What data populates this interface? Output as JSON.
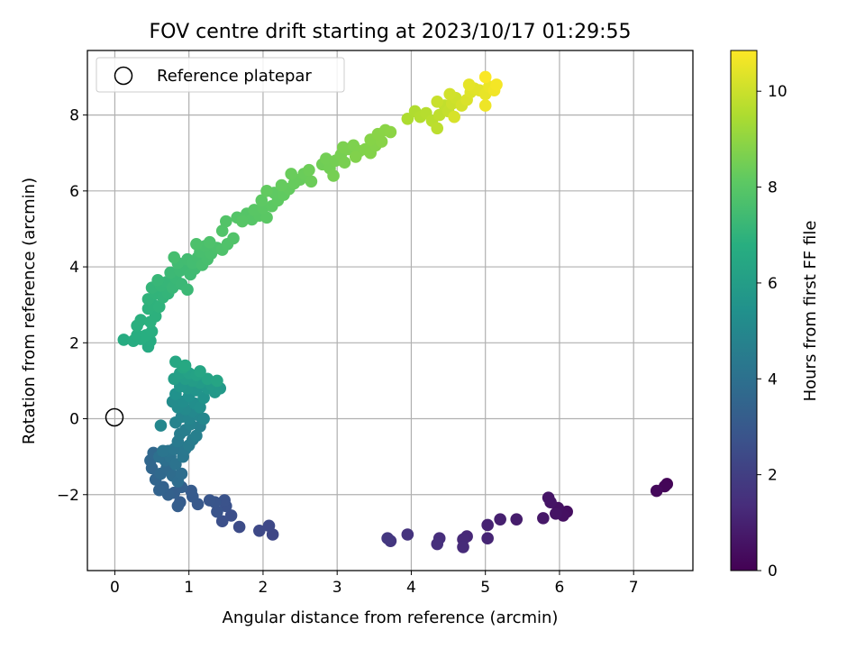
{
  "chart_data": {
    "type": "scatter",
    "title": "FOV centre drift starting at 2023/10/17 01:29:55",
    "xlabel": "Angular distance from reference (arcmin)",
    "ylabel": "Rotation from reference (arcmin)",
    "xlim": [
      -0.37,
      7.8
    ],
    "ylim": [
      -4.0,
      9.7
    ],
    "xticks": [
      "0",
      "1",
      "2",
      "3",
      "4",
      "5",
      "6",
      "7"
    ],
    "yticks": [
      "−2",
      "0",
      "2",
      "4",
      "6",
      "8"
    ],
    "grid": true,
    "legend": {
      "placement": "top-left",
      "label": "Reference platepar"
    },
    "reference_point": {
      "x": 0,
      "y": 0
    },
    "colorbar": {
      "label": "Hours from first FF file",
      "min": 0,
      "max": 10.85,
      "ticks": [
        "0",
        "2",
        "4",
        "6",
        "8",
        "10"
      ],
      "colormap": "viridis"
    },
    "points": [
      {
        "x": 7.45,
        "y": -1.72,
        "c": 0.1
      },
      {
        "x": 7.42,
        "y": -1.78,
        "c": 0.15
      },
      {
        "x": 7.31,
        "y": -1.9,
        "c": 0.25
      },
      {
        "x": 6.1,
        "y": -2.45,
        "c": 0.4
      },
      {
        "x": 6.05,
        "y": -2.55,
        "c": 0.45
      },
      {
        "x": 5.98,
        "y": -2.35,
        "c": 0.5
      },
      {
        "x": 5.95,
        "y": -2.5,
        "c": 0.55
      },
      {
        "x": 5.88,
        "y": -2.2,
        "c": 0.6
      },
      {
        "x": 5.85,
        "y": -2.08,
        "c": 0.62
      },
      {
        "x": 5.78,
        "y": -2.62,
        "c": 0.7
      },
      {
        "x": 5.42,
        "y": -2.65,
        "c": 0.85
      },
      {
        "x": 5.2,
        "y": -2.65,
        "c": 0.95
      },
      {
        "x": 5.03,
        "y": -2.8,
        "c": 1.05
      },
      {
        "x": 5.03,
        "y": -3.15,
        "c": 1.1
      },
      {
        "x": 4.75,
        "y": -3.1,
        "c": 1.2
      },
      {
        "x": 4.7,
        "y": -3.18,
        "c": 1.25
      },
      {
        "x": 4.7,
        "y": -3.38,
        "c": 1.3
      },
      {
        "x": 4.38,
        "y": -3.15,
        "c": 1.4
      },
      {
        "x": 4.35,
        "y": -3.3,
        "c": 1.45
      },
      {
        "x": 3.95,
        "y": -3.05,
        "c": 1.6
      },
      {
        "x": 3.72,
        "y": -3.22,
        "c": 1.7
      },
      {
        "x": 3.68,
        "y": -3.15,
        "c": 1.75
      },
      {
        "x": 2.13,
        "y": -3.05,
        "c": 2.3
      },
      {
        "x": 2.08,
        "y": -2.82,
        "c": 2.35
      },
      {
        "x": 1.95,
        "y": -2.95,
        "c": 2.4
      },
      {
        "x": 1.68,
        "y": -2.85,
        "c": 2.5
      },
      {
        "x": 1.57,
        "y": -2.55,
        "c": 2.6
      },
      {
        "x": 1.45,
        "y": -2.7,
        "c": 2.65
      },
      {
        "x": 1.5,
        "y": -2.3,
        "c": 2.7
      },
      {
        "x": 1.48,
        "y": -2.15,
        "c": 2.75
      },
      {
        "x": 1.38,
        "y": -2.45,
        "c": 2.8
      },
      {
        "x": 1.35,
        "y": -2.2,
        "c": 2.85
      },
      {
        "x": 1.28,
        "y": -2.15,
        "c": 2.9
      },
      {
        "x": 1.12,
        "y": -2.25,
        "c": 3.0
      },
      {
        "x": 1.05,
        "y": -2.05,
        "c": 3.05
      },
      {
        "x": 1.03,
        "y": -1.9,
        "c": 3.1
      },
      {
        "x": 0.88,
        "y": -2.2,
        "c": 3.15
      },
      {
        "x": 0.85,
        "y": -2.3,
        "c": 3.2
      },
      {
        "x": 0.8,
        "y": -1.95,
        "c": 3.25
      },
      {
        "x": 0.9,
        "y": -1.8,
        "c": 3.3
      },
      {
        "x": 0.72,
        "y": -2.0,
        "c": 3.35
      },
      {
        "x": 0.65,
        "y": -1.8,
        "c": 3.4
      },
      {
        "x": 0.6,
        "y": -1.88,
        "c": 3.45
      },
      {
        "x": 0.55,
        "y": -1.6,
        "c": 3.5
      },
      {
        "x": 0.5,
        "y": -1.3,
        "c": 3.55
      },
      {
        "x": 0.48,
        "y": -1.1,
        "c": 3.6
      },
      {
        "x": 0.52,
        "y": -0.9,
        "c": 3.65
      },
      {
        "x": 0.62,
        "y": -1.45,
        "c": 3.7
      },
      {
        "x": 0.7,
        "y": -1.3,
        "c": 3.75
      },
      {
        "x": 0.78,
        "y": -1.5,
        "c": 3.8
      },
      {
        "x": 0.85,
        "y": -1.65,
        "c": 3.85
      },
      {
        "x": 0.9,
        "y": -1.45,
        "c": 3.9
      },
      {
        "x": 0.68,
        "y": -1.1,
        "c": 3.95
      },
      {
        "x": 0.6,
        "y": -1.0,
        "c": 4.0
      },
      {
        "x": 0.75,
        "y": -1.0,
        "c": 4.05
      },
      {
        "x": 0.82,
        "y": -1.2,
        "c": 4.1
      },
      {
        "x": 0.72,
        "y": -0.85,
        "c": 4.15
      },
      {
        "x": 0.65,
        "y": -0.85,
        "c": 4.2
      },
      {
        "x": 0.8,
        "y": -0.8,
        "c": 4.25
      },
      {
        "x": 0.92,
        "y": -1.0,
        "c": 4.3
      },
      {
        "x": 0.95,
        "y": -0.8,
        "c": 4.35
      },
      {
        "x": 0.85,
        "y": -0.6,
        "c": 4.4
      },
      {
        "x": 1.0,
        "y": -0.7,
        "c": 4.45
      },
      {
        "x": 1.05,
        "y": -0.55,
        "c": 4.5
      },
      {
        "x": 0.88,
        "y": -0.4,
        "c": 4.55
      },
      {
        "x": 0.95,
        "y": -0.3,
        "c": 4.6
      },
      {
        "x": 1.1,
        "y": -0.45,
        "c": 4.65
      },
      {
        "x": 1.15,
        "y": -0.2,
        "c": 4.7
      },
      {
        "x": 1.02,
        "y": -0.15,
        "c": 4.75
      },
      {
        "x": 0.82,
        "y": -0.1,
        "c": 4.8
      },
      {
        "x": 0.9,
        "y": 0.05,
        "c": 4.85
      },
      {
        "x": 1.0,
        "y": 0.0,
        "c": 4.9
      },
      {
        "x": 1.12,
        "y": 0.1,
        "c": 4.95
      },
      {
        "x": 1.2,
        "y": 0.0,
        "c": 5.0
      },
      {
        "x": 1.05,
        "y": 0.2,
        "c": 5.05
      },
      {
        "x": 0.95,
        "y": 0.25,
        "c": 5.1
      },
      {
        "x": 0.85,
        "y": 0.3,
        "c": 5.15
      },
      {
        "x": 0.78,
        "y": 0.45,
        "c": 5.2
      },
      {
        "x": 0.92,
        "y": 0.45,
        "c": 5.25
      },
      {
        "x": 1.08,
        "y": 0.4,
        "c": 5.3
      },
      {
        "x": 1.15,
        "y": 0.3,
        "c": 5.35
      },
      {
        "x": 0.62,
        "y": -0.18,
        "c": 5.0
      },
      {
        "x": 1.0,
        "y": 0.6,
        "c": 5.4
      },
      {
        "x": 0.82,
        "y": 0.65,
        "c": 5.45
      },
      {
        "x": 1.2,
        "y": 0.55,
        "c": 5.5
      },
      {
        "x": 1.1,
        "y": 0.75,
        "c": 5.55
      },
      {
        "x": 0.98,
        "y": 0.8,
        "c": 5.6
      },
      {
        "x": 0.88,
        "y": 0.85,
        "c": 5.65
      },
      {
        "x": 1.25,
        "y": 0.8,
        "c": 5.7
      },
      {
        "x": 1.35,
        "y": 0.7,
        "c": 5.75
      },
      {
        "x": 1.42,
        "y": 0.8,
        "c": 5.8
      },
      {
        "x": 1.3,
        "y": 0.9,
        "c": 5.85
      },
      {
        "x": 1.15,
        "y": 0.95,
        "c": 5.9
      },
      {
        "x": 1.05,
        "y": 1.0,
        "c": 5.95
      },
      {
        "x": 0.95,
        "y": 1.05,
        "c": 6.0
      },
      {
        "x": 0.8,
        "y": 1.05,
        "c": 6.05
      },
      {
        "x": 0.88,
        "y": 1.2,
        "c": 6.1
      },
      {
        "x": 1.0,
        "y": 1.2,
        "c": 6.15
      },
      {
        "x": 1.1,
        "y": 1.15,
        "c": 6.2
      },
      {
        "x": 1.25,
        "y": 1.05,
        "c": 6.25
      },
      {
        "x": 1.38,
        "y": 1.0,
        "c": 6.3
      },
      {
        "x": 1.15,
        "y": 1.25,
        "c": 6.35
      },
      {
        "x": 0.92,
        "y": 1.35,
        "c": 6.4
      },
      {
        "x": 0.82,
        "y": 1.5,
        "c": 6.45
      },
      {
        "x": 0.95,
        "y": 1.4,
        "c": 6.5
      },
      {
        "x": 0.45,
        "y": 1.9,
        "c": 6.6
      },
      {
        "x": 0.48,
        "y": 2.05,
        "c": 6.62
      },
      {
        "x": 0.12,
        "y": 2.08,
        "c": 6.65
      },
      {
        "x": 0.25,
        "y": 2.05,
        "c": 6.7
      },
      {
        "x": 0.35,
        "y": 2.1,
        "c": 6.72
      },
      {
        "x": 0.3,
        "y": 2.2,
        "c": 6.75
      },
      {
        "x": 0.42,
        "y": 2.2,
        "c": 6.78
      },
      {
        "x": 0.5,
        "y": 2.3,
        "c": 6.8
      },
      {
        "x": 0.3,
        "y": 2.45,
        "c": 6.82
      },
      {
        "x": 0.35,
        "y": 2.6,
        "c": 6.85
      },
      {
        "x": 0.48,
        "y": 2.55,
        "c": 6.88
      },
      {
        "x": 0.55,
        "y": 2.7,
        "c": 6.9
      },
      {
        "x": 0.45,
        "y": 2.9,
        "c": 6.92
      },
      {
        "x": 0.52,
        "y": 3.0,
        "c": 6.95
      },
      {
        "x": 0.6,
        "y": 2.95,
        "c": 6.98
      },
      {
        "x": 0.45,
        "y": 3.15,
        "c": 7.0
      },
      {
        "x": 0.55,
        "y": 3.3,
        "c": 7.03
      },
      {
        "x": 0.65,
        "y": 3.2,
        "c": 7.05
      },
      {
        "x": 0.72,
        "y": 3.3,
        "c": 7.08
      },
      {
        "x": 0.5,
        "y": 3.45,
        "c": 7.1
      },
      {
        "x": 0.62,
        "y": 3.5,
        "c": 7.13
      },
      {
        "x": 0.7,
        "y": 3.6,
        "c": 7.15
      },
      {
        "x": 0.58,
        "y": 3.65,
        "c": 7.18
      },
      {
        "x": 0.78,
        "y": 3.45,
        "c": 7.2
      },
      {
        "x": 0.82,
        "y": 3.7,
        "c": 7.23
      },
      {
        "x": 0.9,
        "y": 3.55,
        "c": 7.25
      },
      {
        "x": 0.98,
        "y": 3.4,
        "c": 7.28
      },
      {
        "x": 0.75,
        "y": 3.85,
        "c": 7.3
      },
      {
        "x": 0.88,
        "y": 3.9,
        "c": 7.33
      },
      {
        "x": 0.95,
        "y": 4.0,
        "c": 7.35
      },
      {
        "x": 1.02,
        "y": 3.8,
        "c": 7.38
      },
      {
        "x": 1.08,
        "y": 3.95,
        "c": 7.4
      },
      {
        "x": 0.85,
        "y": 4.1,
        "c": 7.43
      },
      {
        "x": 0.98,
        "y": 4.2,
        "c": 7.45
      },
      {
        "x": 1.05,
        "y": 4.1,
        "c": 7.48
      },
      {
        "x": 1.12,
        "y": 4.25,
        "c": 7.5
      },
      {
        "x": 0.8,
        "y": 4.25,
        "c": 7.53
      },
      {
        "x": 1.18,
        "y": 4.05,
        "c": 7.55
      },
      {
        "x": 1.25,
        "y": 4.2,
        "c": 7.58
      },
      {
        "x": 1.15,
        "y": 4.4,
        "c": 7.6
      },
      {
        "x": 1.3,
        "y": 4.35,
        "c": 7.63
      },
      {
        "x": 1.22,
        "y": 4.55,
        "c": 7.65
      },
      {
        "x": 1.38,
        "y": 4.5,
        "c": 7.68
      },
      {
        "x": 1.1,
        "y": 4.6,
        "c": 7.7
      },
      {
        "x": 1.28,
        "y": 4.65,
        "c": 7.73
      },
      {
        "x": 1.45,
        "y": 4.45,
        "c": 7.75
      },
      {
        "x": 1.52,
        "y": 4.6,
        "c": 7.78
      },
      {
        "x": 1.6,
        "y": 4.75,
        "c": 7.8
      },
      {
        "x": 1.45,
        "y": 4.95,
        "c": 7.83
      },
      {
        "x": 1.5,
        "y": 5.2,
        "c": 7.85
      },
      {
        "x": 1.65,
        "y": 5.3,
        "c": 7.88
      },
      {
        "x": 1.78,
        "y": 5.4,
        "c": 7.9
      },
      {
        "x": 1.85,
        "y": 5.25,
        "c": 7.93
      },
      {
        "x": 1.72,
        "y": 5.2,
        "c": 7.95
      },
      {
        "x": 1.95,
        "y": 5.35,
        "c": 7.98
      },
      {
        "x": 1.88,
        "y": 5.5,
        "c": 8.0
      },
      {
        "x": 2.05,
        "y": 5.3,
        "c": 8.03
      },
      {
        "x": 2.0,
        "y": 5.55,
        "c": 8.05
      },
      {
        "x": 2.12,
        "y": 5.6,
        "c": 8.08
      },
      {
        "x": 1.98,
        "y": 5.75,
        "c": 8.1
      },
      {
        "x": 2.2,
        "y": 5.75,
        "c": 8.13
      },
      {
        "x": 2.15,
        "y": 5.95,
        "c": 8.15
      },
      {
        "x": 2.28,
        "y": 5.9,
        "c": 8.18
      },
      {
        "x": 2.05,
        "y": 6.0,
        "c": 8.2
      },
      {
        "x": 2.35,
        "y": 6.05,
        "c": 8.23
      },
      {
        "x": 2.25,
        "y": 6.15,
        "c": 8.25
      },
      {
        "x": 2.42,
        "y": 6.2,
        "c": 8.28
      },
      {
        "x": 2.5,
        "y": 6.3,
        "c": 8.3
      },
      {
        "x": 2.38,
        "y": 6.45,
        "c": 8.33
      },
      {
        "x": 2.55,
        "y": 6.45,
        "c": 8.35
      },
      {
        "x": 2.65,
        "y": 6.25,
        "c": 8.38
      },
      {
        "x": 2.62,
        "y": 6.55,
        "c": 8.4
      },
      {
        "x": 2.8,
        "y": 6.7,
        "c": 8.45
      },
      {
        "x": 2.9,
        "y": 6.6,
        "c": 8.48
      },
      {
        "x": 2.85,
        "y": 6.85,
        "c": 8.5
      },
      {
        "x": 2.98,
        "y": 6.8,
        "c": 8.53
      },
      {
        "x": 2.95,
        "y": 6.4,
        "c": 8.55
      },
      {
        "x": 3.05,
        "y": 6.95,
        "c": 8.58
      },
      {
        "x": 3.1,
        "y": 6.75,
        "c": 8.6
      },
      {
        "x": 3.15,
        "y": 7.1,
        "c": 8.63
      },
      {
        "x": 3.08,
        "y": 7.15,
        "c": 8.65
      },
      {
        "x": 3.22,
        "y": 7.2,
        "c": 8.68
      },
      {
        "x": 3.3,
        "y": 7.05,
        "c": 8.7
      },
      {
        "x": 3.25,
        "y": 6.9,
        "c": 8.73
      },
      {
        "x": 3.38,
        "y": 7.1,
        "c": 8.75
      },
      {
        "x": 3.45,
        "y": 7.0,
        "c": 8.78
      },
      {
        "x": 3.52,
        "y": 7.2,
        "c": 8.8
      },
      {
        "x": 3.45,
        "y": 7.35,
        "c": 8.83
      },
      {
        "x": 3.6,
        "y": 7.3,
        "c": 8.85
      },
      {
        "x": 3.55,
        "y": 7.5,
        "c": 8.88
      },
      {
        "x": 3.65,
        "y": 7.6,
        "c": 8.9
      },
      {
        "x": 3.72,
        "y": 7.55,
        "c": 8.93
      },
      {
        "x": 3.95,
        "y": 7.9,
        "c": 9.5
      },
      {
        "x": 4.05,
        "y": 8.1,
        "c": 9.55
      },
      {
        "x": 4.12,
        "y": 7.95,
        "c": 9.6
      },
      {
        "x": 4.2,
        "y": 8.05,
        "c": 9.65
      },
      {
        "x": 4.28,
        "y": 7.85,
        "c": 9.7
      },
      {
        "x": 4.35,
        "y": 7.65,
        "c": 9.75
      },
      {
        "x": 4.38,
        "y": 8.0,
        "c": 9.8
      },
      {
        "x": 4.45,
        "y": 8.25,
        "c": 9.85
      },
      {
        "x": 4.5,
        "y": 8.1,
        "c": 9.9
      },
      {
        "x": 4.35,
        "y": 8.35,
        "c": 9.95
      },
      {
        "x": 4.55,
        "y": 8.3,
        "c": 10.0
      },
      {
        "x": 4.6,
        "y": 8.45,
        "c": 10.05
      },
      {
        "x": 4.52,
        "y": 8.55,
        "c": 10.1
      },
      {
        "x": 4.68,
        "y": 8.25,
        "c": 10.15
      },
      {
        "x": 4.58,
        "y": 7.95,
        "c": 10.2
      },
      {
        "x": 4.75,
        "y": 8.4,
        "c": 10.25
      },
      {
        "x": 4.8,
        "y": 8.6,
        "c": 10.3
      },
      {
        "x": 4.85,
        "y": 8.7,
        "c": 10.35
      },
      {
        "x": 4.92,
        "y": 8.65,
        "c": 10.4
      },
      {
        "x": 4.78,
        "y": 8.8,
        "c": 10.45
      },
      {
        "x": 5.0,
        "y": 8.55,
        "c": 10.5
      },
      {
        "x": 5.05,
        "y": 8.75,
        "c": 10.55
      },
      {
        "x": 5.0,
        "y": 8.25,
        "c": 10.6
      },
      {
        "x": 5.12,
        "y": 8.65,
        "c": 10.65
      },
      {
        "x": 5.15,
        "y": 8.8,
        "c": 10.7
      },
      {
        "x": 5.0,
        "y": 9.0,
        "c": 10.8
      }
    ]
  }
}
